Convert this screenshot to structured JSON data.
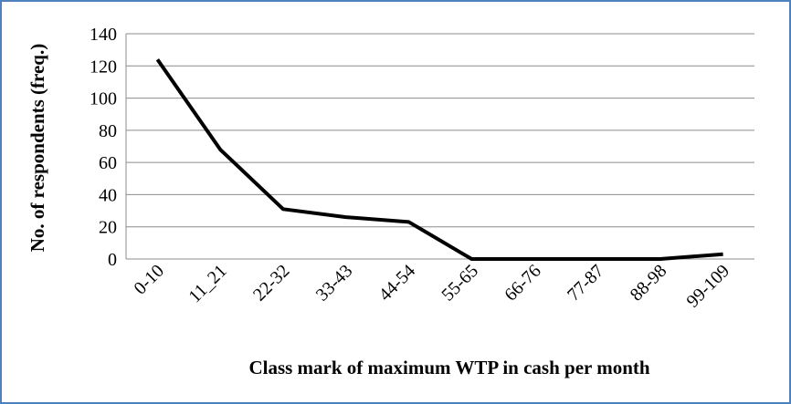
{
  "chart_data": {
    "type": "line",
    "x_label": "Class mark of  maximum WTP in cash per month",
    "y_label": "No. of respondents (freq.)",
    "categories": [
      "0-10",
      "11_21",
      "22-32",
      "33-43",
      "44-54",
      "55-65",
      "66-76",
      "77-87",
      "88-98",
      "99-109"
    ],
    "values": [
      124,
      68,
      31,
      26,
      23,
      0,
      0,
      0,
      0,
      3
    ],
    "color": "#000000",
    "ylim": [
      0,
      140
    ],
    "yticks": [
      0,
      20,
      40,
      60,
      80,
      100,
      120,
      140
    ],
    "grid": true
  }
}
